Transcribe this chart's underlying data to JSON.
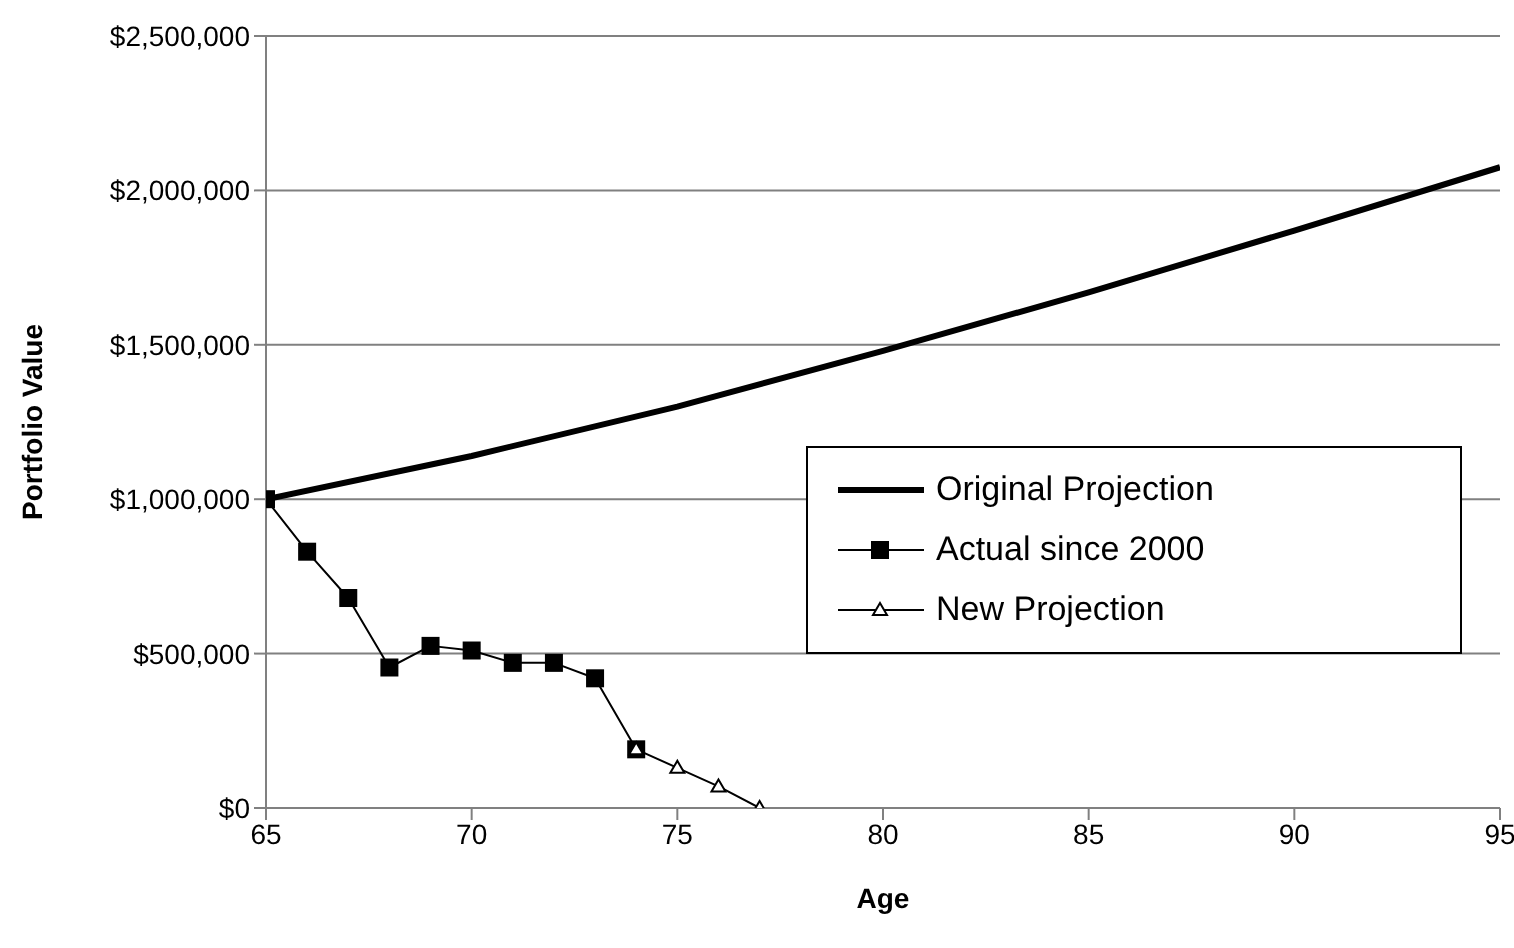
{
  "chart_data": {
    "type": "line",
    "xlabel": "Age",
    "ylabel": "Portfolio Value",
    "xlim": [
      65,
      95
    ],
    "xticks": [
      65,
      70,
      75,
      80,
      85,
      90,
      95
    ],
    "ylim": [
      0,
      2500000
    ],
    "yticks": [
      {
        "value": 0,
        "label": "$0"
      },
      {
        "value": 500000,
        "label": "$500,000"
      },
      {
        "value": 1000000,
        "label": "$1,000,000"
      },
      {
        "value": 1500000,
        "label": "$1,500,000"
      },
      {
        "value": 2000000,
        "label": "$2,000,000"
      },
      {
        "value": 2500000,
        "label": "$2,500,000"
      }
    ],
    "grid": "y",
    "legend": "right",
    "series": [
      {
        "name": "Original Projection",
        "color": "#000000",
        "marker": "none",
        "x": [
          65,
          70,
          75,
          80,
          85,
          90,
          95
        ],
        "values": [
          1000000,
          1140000,
          1300000,
          1480000,
          1670000,
          1870000,
          2075000
        ]
      },
      {
        "name": "Actual since 2000",
        "color": "#000000",
        "marker": "square",
        "x": [
          65,
          66,
          67,
          68,
          69,
          70,
          71,
          72,
          73,
          74
        ],
        "values": [
          1000000,
          830000,
          680000,
          455000,
          525000,
          510000,
          470000,
          470000,
          420000,
          190000
        ]
      },
      {
        "name": "New Projection",
        "color": "#000000",
        "marker": "triangle",
        "x": [
          74,
          75,
          76,
          77
        ],
        "values": [
          190000,
          130000,
          70000,
          0
        ]
      }
    ]
  }
}
